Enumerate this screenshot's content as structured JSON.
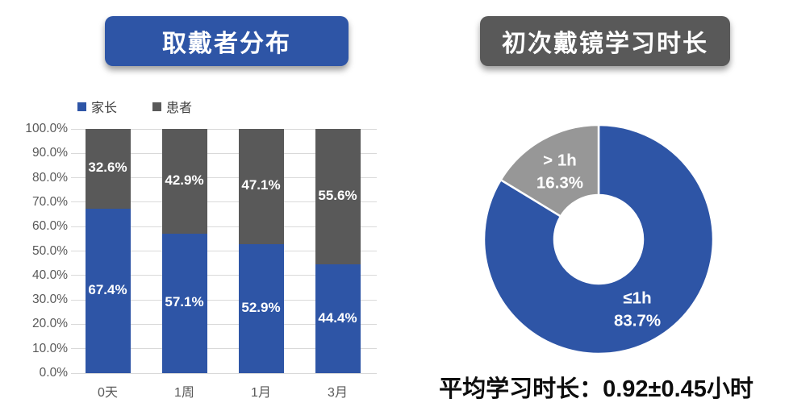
{
  "colors": {
    "blue": "#2E55A6",
    "dark_gray": "#595959",
    "donut_gray": "#979797",
    "grid": "#D9D9D9",
    "axis_text": "#595959",
    "legend_text": "#404040",
    "data_label": "#FFFFFF",
    "annotation_text": "#0D0D0D"
  },
  "chart_data": [
    {
      "type": "bar",
      "subtype": "100%-stacked-column",
      "title": "取戴者分布",
      "title_bg": "#2E55A6",
      "categories": [
        "0天",
        "1周",
        "1月",
        "3月"
      ],
      "series": [
        {
          "name": "家长",
          "color": "#2E55A6",
          "values": [
            67.4,
            57.1,
            52.9,
            44.4
          ]
        },
        {
          "name": "患者",
          "color": "#595959",
          "values": [
            32.6,
            42.9,
            47.1,
            55.6
          ]
        }
      ],
      "data_label_format": "percent-1dp",
      "ylim": [
        0,
        100
      ],
      "yticks": [
        "0.0%",
        "10.0%",
        "20.0%",
        "30.0%",
        "40.0%",
        "50.0%",
        "60.0%",
        "70.0%",
        "80.0%",
        "90.0%",
        "100.0%"
      ],
      "grid": true,
      "legend_position": "top-left"
    },
    {
      "type": "pie",
      "subtype": "donut",
      "title": "初次戴镜学习时长",
      "title_bg": "#595959",
      "slices": [
        {
          "label": "≤1h",
          "value": 83.7,
          "color": "#2E55A6"
        },
        {
          "label": "> 1h",
          "value": 16.3,
          "color": "#979797"
        }
      ],
      "start_angle_deg": 0,
      "direction": "clockwise",
      "annotation": "平均学习时长：0.92±0.45小时"
    }
  ]
}
